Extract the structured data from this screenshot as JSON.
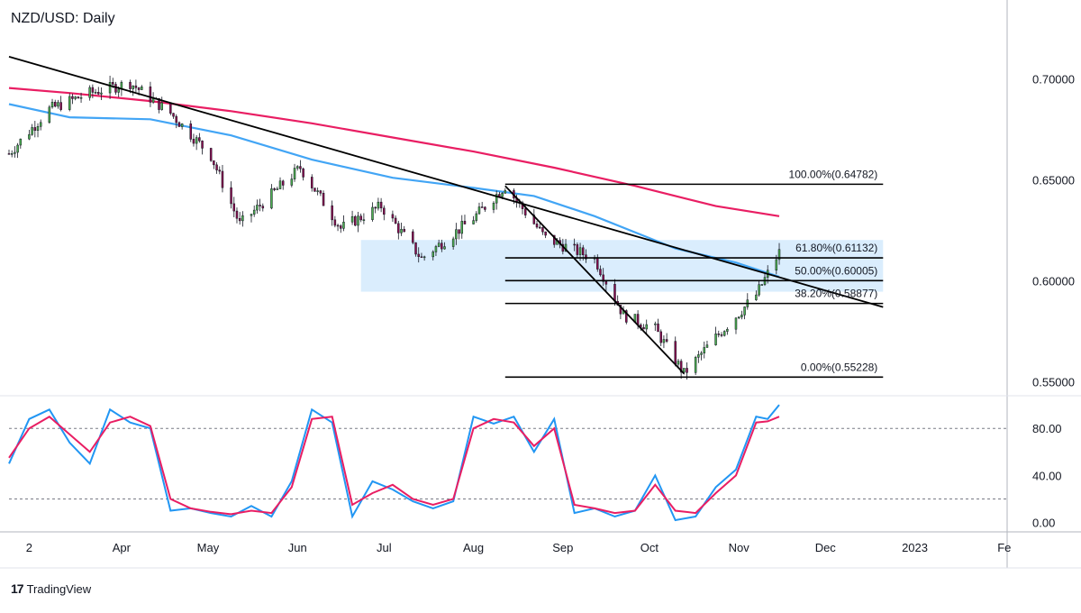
{
  "chart_data": {
    "type": "candlestick",
    "title": "NZD/USD: Daily",
    "brand": "TradingView",
    "brand_logo": "tradingview-logo-icon",
    "x_tick_labels": [
      "2",
      "Apr",
      "May",
      "Jun",
      "Jul",
      "Aug",
      "Sep",
      "Oct",
      "Nov",
      "Dec",
      "2023",
      "Fe"
    ],
    "price_axis": {
      "ticks": [
        "0.70000",
        "0.65000",
        "0.60000",
        "0.55000"
      ],
      "ylim": [
        0.5435,
        0.7355
      ]
    },
    "trend_lines": [
      {
        "name": "long-term-resistance",
        "from": {
          "date": "2022-02-21",
          "price": 0.711
        },
        "to": {
          "date": "2022-12-21",
          "price": 0.587
        }
      },
      {
        "name": "short-term-resistance",
        "from": {
          "date": "2022-08-12",
          "price": 0.647
        },
        "to": {
          "date": "2022-10-13",
          "price": 0.554
        }
      }
    ],
    "moving_averages": [
      {
        "name": "sma-200",
        "color": "#e91e63",
        "points": [
          [
            0.6955,
            "2022-02-21"
          ],
          [
            0.693,
            "2022-03-14"
          ],
          [
            0.689,
            "2022-04-11"
          ],
          [
            0.684,
            "2022-05-09"
          ],
          [
            0.678,
            "2022-06-06"
          ],
          [
            0.671,
            "2022-07-04"
          ],
          [
            0.664,
            "2022-08-01"
          ],
          [
            0.656,
            "2022-08-29"
          ],
          [
            0.647,
            "2022-09-26"
          ],
          [
            0.637,
            "2022-10-24"
          ],
          [
            0.632,
            "2022-11-15"
          ]
        ]
      },
      {
        "name": "sma-100",
        "color": "#42a5f5",
        "points": [
          [
            0.6875,
            "2022-02-21"
          ],
          [
            0.681,
            "2022-03-14"
          ],
          [
            0.68,
            "2022-04-11"
          ],
          [
            0.672,
            "2022-05-09"
          ],
          [
            0.66,
            "2022-06-06"
          ],
          [
            0.651,
            "2022-07-04"
          ],
          [
            0.646,
            "2022-08-01"
          ],
          [
            0.642,
            "2022-08-22"
          ],
          [
            0.632,
            "2022-09-12"
          ],
          [
            0.616,
            "2022-10-10"
          ],
          [
            0.609,
            "2022-10-31"
          ],
          [
            0.602,
            "2022-11-15"
          ]
        ]
      }
    ],
    "support_zone": {
      "color": "#bbdefb",
      "from_date": "2022-06-23",
      "to_date": "2022-12-21",
      "price_low": 0.5946,
      "price_high": 0.6202
    },
    "fibonacci": {
      "from_date": "2022-08-12",
      "to_date": "2022-12-21",
      "levels": [
        {
          "label": "100.00%(0.64782)",
          "price": 0.64782
        },
        {
          "label": "61.80%(0.61132)",
          "price": 0.61132
        },
        {
          "label": "50.00%(0.60005)",
          "price": 0.60005
        },
        {
          "label": "38.20%(0.58877)",
          "price": 0.58877
        },
        {
          "label": "0.00%(0.55228)",
          "price": 0.55228
        }
      ]
    },
    "price_series": [
      {
        "date": "2022-02-21",
        "price": 0.663
      },
      {
        "date": "2022-03-07",
        "price": 0.685
      },
      {
        "date": "2022-03-21",
        "price": 0.693
      },
      {
        "date": "2022-04-04",
        "price": 0.698
      },
      {
        "date": "2022-04-18",
        "price": 0.683
      },
      {
        "date": "2022-05-02",
        "price": 0.662
      },
      {
        "date": "2022-05-12",
        "price": 0.628
      },
      {
        "date": "2022-06-02",
        "price": 0.656
      },
      {
        "date": "2022-06-16",
        "price": 0.626
      },
      {
        "date": "2022-06-30",
        "price": 0.637
      },
      {
        "date": "2022-07-14",
        "price": 0.611
      },
      {
        "date": "2022-08-01",
        "price": 0.631
      },
      {
        "date": "2022-08-12",
        "price": 0.647
      },
      {
        "date": "2022-08-26",
        "price": 0.621
      },
      {
        "date": "2022-09-12",
        "price": 0.611
      },
      {
        "date": "2022-09-22",
        "price": 0.583
      },
      {
        "date": "2022-10-03",
        "price": 0.576
      },
      {
        "date": "2022-10-13",
        "price": 0.554
      },
      {
        "date": "2022-10-24",
        "price": 0.572
      },
      {
        "date": "2022-11-07",
        "price": 0.593
      },
      {
        "date": "2022-11-15",
        "price": 0.614
      }
    ],
    "oscillator": {
      "name": "Stochastic",
      "ticks": [
        "80.00",
        "40.00",
        "0.00"
      ],
      "levels": [
        80,
        20
      ],
      "ylim": [
        -8,
        107
      ],
      "k_color": "#2196f3",
      "d_color": "#e91e63",
      "k": [
        [
          "2022-02-21",
          50
        ],
        [
          "2022-02-28",
          88
        ],
        [
          "2022-03-07",
          96
        ],
        [
          "2022-03-14",
          68
        ],
        [
          "2022-03-21",
          50
        ],
        [
          "2022-03-28",
          96
        ],
        [
          "2022-04-04",
          85
        ],
        [
          "2022-04-11",
          80
        ],
        [
          "2022-04-18",
          10
        ],
        [
          "2022-04-25",
          12
        ],
        [
          "2022-05-02",
          8
        ],
        [
          "2022-05-09",
          5
        ],
        [
          "2022-05-16",
          14
        ],
        [
          "2022-05-23",
          5
        ],
        [
          "2022-05-30",
          35
        ],
        [
          "2022-06-06",
          96
        ],
        [
          "2022-06-13",
          85
        ],
        [
          "2022-06-20",
          5
        ],
        [
          "2022-06-27",
          35
        ],
        [
          "2022-07-04",
          28
        ],
        [
          "2022-07-11",
          18
        ],
        [
          "2022-07-18",
          12
        ],
        [
          "2022-07-25",
          18
        ],
        [
          "2022-08-01",
          90
        ],
        [
          "2022-08-08",
          84
        ],
        [
          "2022-08-15",
          90
        ],
        [
          "2022-08-22",
          60
        ],
        [
          "2022-08-29",
          88
        ],
        [
          "2022-09-05",
          8
        ],
        [
          "2022-09-12",
          12
        ],
        [
          "2022-09-19",
          5
        ],
        [
          "2022-09-26",
          10
        ],
        [
          "2022-10-03",
          40
        ],
        [
          "2022-10-10",
          2
        ],
        [
          "2022-10-17",
          5
        ],
        [
          "2022-10-24",
          30
        ],
        [
          "2022-10-31",
          45
        ],
        [
          "2022-11-07",
          90
        ],
        [
          "2022-11-11",
          88
        ],
        [
          "2022-11-15",
          100
        ]
      ],
      "d": [
        [
          "2022-02-21",
          55
        ],
        [
          "2022-02-28",
          80
        ],
        [
          "2022-03-07",
          90
        ],
        [
          "2022-03-14",
          75
        ],
        [
          "2022-03-21",
          60
        ],
        [
          "2022-03-28",
          85
        ],
        [
          "2022-04-04",
          90
        ],
        [
          "2022-04-11",
          82
        ],
        [
          "2022-04-18",
          20
        ],
        [
          "2022-04-25",
          12
        ],
        [
          "2022-05-02",
          9
        ],
        [
          "2022-05-09",
          7
        ],
        [
          "2022-05-16",
          10
        ],
        [
          "2022-05-23",
          8
        ],
        [
          "2022-05-30",
          30
        ],
        [
          "2022-06-06",
          88
        ],
        [
          "2022-06-13",
          90
        ],
        [
          "2022-06-20",
          15
        ],
        [
          "2022-06-27",
          25
        ],
        [
          "2022-07-04",
          32
        ],
        [
          "2022-07-11",
          20
        ],
        [
          "2022-07-18",
          15
        ],
        [
          "2022-07-25",
          20
        ],
        [
          "2022-08-01",
          80
        ],
        [
          "2022-08-08",
          88
        ],
        [
          "2022-08-15",
          85
        ],
        [
          "2022-08-22",
          65
        ],
        [
          "2022-08-29",
          80
        ],
        [
          "2022-09-05",
          15
        ],
        [
          "2022-09-12",
          12
        ],
        [
          "2022-09-19",
          8
        ],
        [
          "2022-09-26",
          10
        ],
        [
          "2022-10-03",
          32
        ],
        [
          "2022-10-10",
          10
        ],
        [
          "2022-10-17",
          8
        ],
        [
          "2022-10-24",
          25
        ],
        [
          "2022-10-31",
          40
        ],
        [
          "2022-11-07",
          85
        ],
        [
          "2022-11-11",
          86
        ],
        [
          "2022-11-15",
          90
        ]
      ]
    },
    "colors": {
      "bull": "#26a69a",
      "bear": "#ef5350",
      "candle_body_bull": "#4caf50",
      "candle_body_bear": "#880e4f",
      "trendline": "#000000",
      "fib_line": "#000000",
      "axis_text": "#131722",
      "grid_border": "#e0e3eb"
    }
  }
}
